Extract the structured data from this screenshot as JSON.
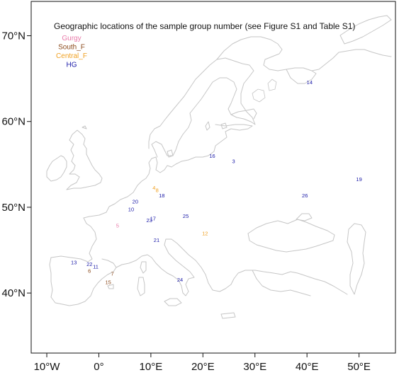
{
  "map": {
    "title": "Geographic locations of the sample group number (see Figure S1 and Table S1)",
    "x_ticks": [
      {
        "value": -10,
        "label": "10°W"
      },
      {
        "value": 0,
        "label": "0°"
      },
      {
        "value": 10,
        "label": "10°E"
      },
      {
        "value": 20,
        "label": "20°E"
      },
      {
        "value": 30,
        "label": "30°E"
      },
      {
        "value": 40,
        "label": "40°E"
      },
      {
        "value": 50,
        "label": "50°E"
      }
    ],
    "y_ticks": [
      {
        "value": 40,
        "label": "40°N"
      },
      {
        "value": 50,
        "label": "50°N"
      },
      {
        "value": 60,
        "label": "60°N"
      },
      {
        "value": 70,
        "label": "70°N"
      }
    ],
    "lon_range": [
      -13,
      57
    ],
    "lat_range": [
      33,
      74
    ],
    "legend": {
      "placement": "top-left",
      "entries": [
        {
          "label": "Gurgy",
          "color": "#e879a8"
        },
        {
          "label": "South_F",
          "color": "#8b4a1c"
        },
        {
          "label": "Central_F",
          "color": "#f0a020"
        },
        {
          "label": "HG",
          "color": "#1a1aa8"
        }
      ]
    },
    "colors": {
      "Gurgy": "#e879a8",
      "South_F": "#8b4a1c",
      "Central_F": "#f0a020",
      "HG": "#1a1aa8",
      "coastline": "#c6c6c6"
    },
    "points": [
      {
        "label": "14",
        "group": "HG",
        "lon": 40.5,
        "lat": 64.6
      },
      {
        "label": "16",
        "group": "HG",
        "lon": 21.8,
        "lat": 56.0
      },
      {
        "label": "3",
        "group": "HG",
        "lon": 25.9,
        "lat": 55.4
      },
      {
        "label": "19",
        "group": "HG",
        "lon": 50.0,
        "lat": 53.3
      },
      {
        "label": "26",
        "group": "HG",
        "lon": 39.6,
        "lat": 51.4
      },
      {
        "label": "4",
        "group": "Central_F",
        "lon": 10.6,
        "lat": 52.3
      },
      {
        "label": "8",
        "group": "Central_F",
        "lon": 11.2,
        "lat": 52.0
      },
      {
        "label": "18",
        "group": "HG",
        "lon": 12.1,
        "lat": 51.4
      },
      {
        "label": "20",
        "group": "HG",
        "lon": 7.0,
        "lat": 50.7
      },
      {
        "label": "10",
        "group": "HG",
        "lon": 6.2,
        "lat": 49.8
      },
      {
        "label": "25",
        "group": "HG",
        "lon": 16.7,
        "lat": 49.0
      },
      {
        "label": "23",
        "group": "HG",
        "lon": 9.7,
        "lat": 48.5
      },
      {
        "label": "17",
        "group": "HG",
        "lon": 10.4,
        "lat": 48.7
      },
      {
        "label": "5",
        "group": "Gurgy",
        "lon": 3.6,
        "lat": 47.9
      },
      {
        "label": "12",
        "group": "Central_F",
        "lon": 20.4,
        "lat": 47.0
      },
      {
        "label": "21",
        "group": "HG",
        "lon": 11.1,
        "lat": 46.2
      },
      {
        "label": "13",
        "group": "HG",
        "lon": -4.8,
        "lat": 43.6
      },
      {
        "label": "22",
        "group": "HG",
        "lon": -1.8,
        "lat": 43.4
      },
      {
        "label": "11",
        "group": "HG",
        "lon": -0.6,
        "lat": 43.1
      },
      {
        "label": "6",
        "group": "South_F",
        "lon": -1.8,
        "lat": 42.6
      },
      {
        "label": "7",
        "group": "South_F",
        "lon": 2.6,
        "lat": 42.3
      },
      {
        "label": "15",
        "group": "South_F",
        "lon": 1.8,
        "lat": 41.3
      },
      {
        "label": "24",
        "group": "HG",
        "lon": 15.6,
        "lat": 41.6
      }
    ]
  }
}
